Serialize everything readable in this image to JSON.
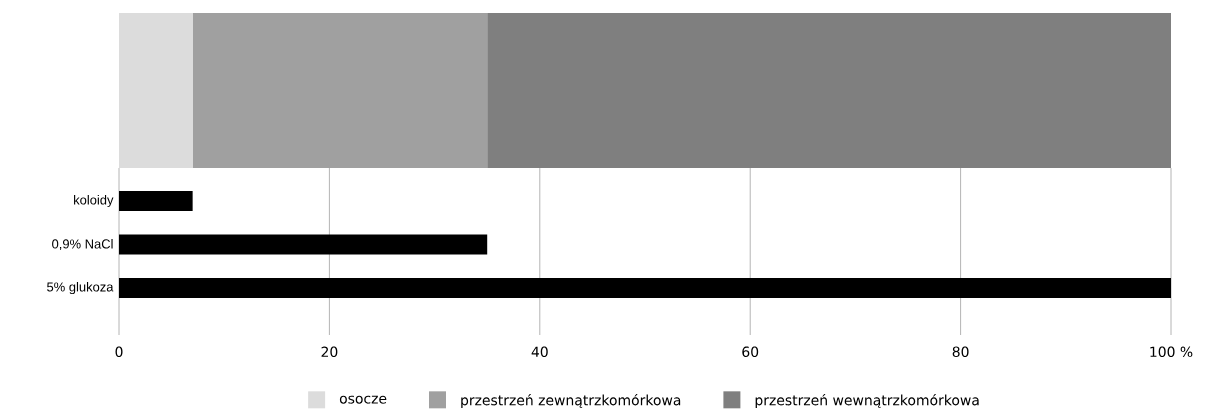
{
  "chart_data": [
    {
      "type": "bar",
      "orientation": "horizontal",
      "stacked": true,
      "categories": [
        null
      ],
      "xlim": [
        0,
        100
      ],
      "tick_labels": false,
      "legend": "bottom",
      "series": [
        {
          "name": "osocze",
          "color": "#dcdcdc",
          "values": [
            7
          ]
        },
        {
          "name": "przestrzeń zewnątrzkomórkowa",
          "color": "#a0a0a0",
          "values": [
            28
          ]
        },
        {
          "name": "przestrzeń wewnątrzkomórkowa",
          "color": "#7f7f7f",
          "values": [
            65
          ]
        }
      ]
    },
    {
      "type": "bar",
      "orientation": "horizontal",
      "categories": [
        "koloidy",
        "0,9% NaCl",
        "5% glukoza"
      ],
      "values": [
        7,
        35,
        100
      ],
      "color": "#000000",
      "xlim": [
        0,
        100
      ],
      "xticks": [
        0,
        20,
        40,
        60,
        80,
        {
          "value": 100,
          "label": "100 %"
        }
      ],
      "grid": "x"
    }
  ]
}
